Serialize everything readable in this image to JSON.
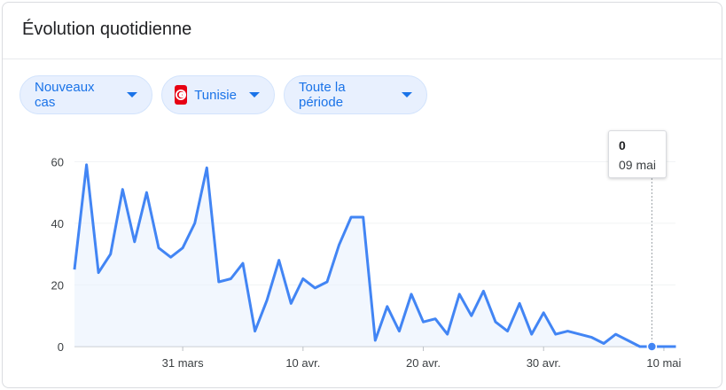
{
  "card": {
    "title": "Évolution quotidienne"
  },
  "filters": {
    "metric": "Nouveaux cas",
    "country": "Tunisie",
    "period": "Toute la période"
  },
  "tooltip": {
    "value": "0",
    "date": "09 mai"
  },
  "colors": {
    "line": "#4285f4",
    "area": "#e8f0fe",
    "chip_text": "#1a73e8",
    "flag": "#e70013"
  },
  "chart_data": {
    "type": "area",
    "title": "",
    "xlabel": "",
    "ylabel": "",
    "ylim": [
      0,
      65
    ],
    "yticks": [
      0,
      20,
      40,
      60
    ],
    "x_start": "2020-03-22",
    "x_ticks": [
      {
        "date": "2020-03-31",
        "label": "31 mars"
      },
      {
        "date": "2020-04-10",
        "label": "10 avr."
      },
      {
        "date": "2020-04-20",
        "label": "20 avr."
      },
      {
        "date": "2020-04-30",
        "label": "30 avr."
      },
      {
        "date": "2020-05-10",
        "label": "10 mai"
      }
    ],
    "highlight": {
      "date": "2020-05-09",
      "value": 0
    },
    "series": [
      {
        "values": [
          25,
          59,
          24,
          30,
          51,
          34,
          50,
          32,
          29,
          32,
          40,
          58,
          21,
          22,
          27,
          5,
          15,
          28,
          14,
          22,
          19,
          21,
          33,
          42,
          42,
          2,
          13,
          5,
          17,
          8,
          9,
          4,
          17,
          10,
          18,
          8,
          5,
          14,
          4,
          11,
          4,
          5,
          4,
          3,
          1,
          4,
          2,
          0,
          0,
          0,
          0
        ]
      }
    ]
  }
}
